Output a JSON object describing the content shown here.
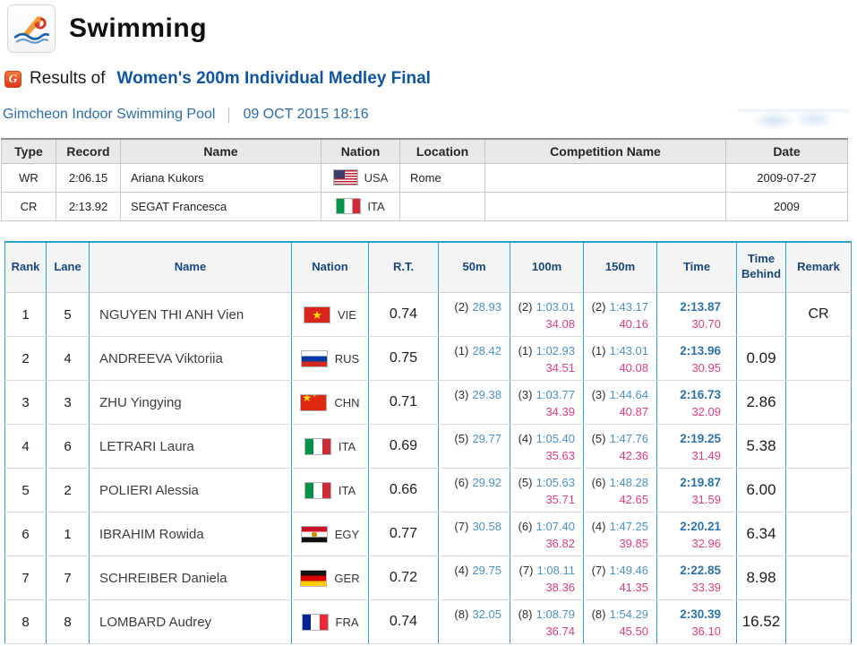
{
  "page": {
    "title": "Swimming",
    "g_icon": "G",
    "results_label": "Results of",
    "event_title": "Women's 200m Individual Medley Final",
    "venue": "Gimcheon Indoor Swimming Pool",
    "datetime": "09 OCT 2015 18:16"
  },
  "icons": {
    "app_icon": "swimmer-pictogram",
    "results_bullet": "g-swirl-badge"
  },
  "colors": {
    "accent_cyan": "#2ba3cf",
    "header_navy": "#17477e",
    "split_blue": "#4a92c8",
    "lap_pink": "#e23b80",
    "final_time_blue": "#2a72b0",
    "event_title_blue": "#0f55a2",
    "venue_blue": "#2b6db2"
  },
  "records_table": {
    "headers": [
      "Type",
      "Record",
      "Name",
      "Nation",
      "Location",
      "Competition Name",
      "Date"
    ],
    "rows": [
      {
        "type": "WR",
        "record": "2:06.15",
        "name": "Ariana Kukors",
        "flag": "usa",
        "nation": "USA",
        "location": "Rome",
        "competition": "",
        "date": "2009-07-27"
      },
      {
        "type": "CR",
        "record": "2:13.92",
        "name": "SEGAT Francesca",
        "flag": "ita",
        "nation": "ITA",
        "location": "",
        "competition": "",
        "date": "2009"
      }
    ]
  },
  "results_table": {
    "headers": [
      "Rank",
      "Lane",
      "Name",
      "Nation",
      "R.T.",
      "50m",
      "100m",
      "150m",
      "Time",
      "Time Behind",
      "Remark"
    ],
    "rows": [
      {
        "rank": "1",
        "lane": "5",
        "name": "NGUYEN THI ANH Vien",
        "flag": "vie",
        "nation": "VIE",
        "rt": "0.74",
        "s50": {
          "pos": "(2)",
          "time": "28.93",
          "lap": ""
        },
        "s100": {
          "pos": "(2)",
          "time": "1:03.01",
          "lap": "34.08"
        },
        "s150": {
          "pos": "(2)",
          "time": "1:43.17",
          "lap": "40.16"
        },
        "final": {
          "time": "2:13.87",
          "lap": "30.70"
        },
        "behind": "",
        "remark": "CR"
      },
      {
        "rank": "2",
        "lane": "4",
        "name": "ANDREEVA Viktoriia",
        "flag": "rus",
        "nation": "RUS",
        "rt": "0.75",
        "s50": {
          "pos": "(1)",
          "time": "28.42",
          "lap": ""
        },
        "s100": {
          "pos": "(1)",
          "time": "1:02.93",
          "lap": "34.51"
        },
        "s150": {
          "pos": "(1)",
          "time": "1:43.01",
          "lap": "40.08"
        },
        "final": {
          "time": "2:13.96",
          "lap": "30.95"
        },
        "behind": "0.09",
        "remark": ""
      },
      {
        "rank": "3",
        "lane": "3",
        "name": "ZHU Yingying",
        "flag": "chn",
        "nation": "CHN",
        "rt": "0.71",
        "s50": {
          "pos": "(3)",
          "time": "29.38",
          "lap": ""
        },
        "s100": {
          "pos": "(3)",
          "time": "1:03.77",
          "lap": "34.39"
        },
        "s150": {
          "pos": "(3)",
          "time": "1:44.64",
          "lap": "40.87"
        },
        "final": {
          "time": "2:16.73",
          "lap": "32.09"
        },
        "behind": "2.86",
        "remark": ""
      },
      {
        "rank": "4",
        "lane": "6",
        "name": "LETRARI Laura",
        "flag": "ita",
        "nation": "ITA",
        "rt": "0.69",
        "s50": {
          "pos": "(5)",
          "time": "29.77",
          "lap": ""
        },
        "s100": {
          "pos": "(4)",
          "time": "1:05.40",
          "lap": "35.63"
        },
        "s150": {
          "pos": "(5)",
          "time": "1:47.76",
          "lap": "42.36"
        },
        "final": {
          "time": "2:19.25",
          "lap": "31.49"
        },
        "behind": "5.38",
        "remark": ""
      },
      {
        "rank": "5",
        "lane": "2",
        "name": "POLIERI Alessia",
        "flag": "ita",
        "nation": "ITA",
        "rt": "0.66",
        "s50": {
          "pos": "(6)",
          "time": "29.92",
          "lap": ""
        },
        "s100": {
          "pos": "(5)",
          "time": "1:05.63",
          "lap": "35.71"
        },
        "s150": {
          "pos": "(6)",
          "time": "1:48.28",
          "lap": "42.65"
        },
        "final": {
          "time": "2:19.87",
          "lap": "31.59"
        },
        "behind": "6.00",
        "remark": ""
      },
      {
        "rank": "6",
        "lane": "1",
        "name": "IBRAHIM Rowida",
        "flag": "egy",
        "nation": "EGY",
        "rt": "0.77",
        "s50": {
          "pos": "(7)",
          "time": "30.58",
          "lap": ""
        },
        "s100": {
          "pos": "(6)",
          "time": "1:07.40",
          "lap": "36.82"
        },
        "s150": {
          "pos": "(4)",
          "time": "1:47.25",
          "lap": "39.85"
        },
        "final": {
          "time": "2:20.21",
          "lap": "32.96"
        },
        "behind": "6.34",
        "remark": ""
      },
      {
        "rank": "7",
        "lane": "7",
        "name": "SCHREIBER Daniela",
        "flag": "ger",
        "nation": "GER",
        "rt": "0.72",
        "s50": {
          "pos": "(4)",
          "time": "29.75",
          "lap": ""
        },
        "s100": {
          "pos": "(7)",
          "time": "1:08.11",
          "lap": "38.36"
        },
        "s150": {
          "pos": "(7)",
          "time": "1:49.46",
          "lap": "41.35"
        },
        "final": {
          "time": "2:22.85",
          "lap": "33.39"
        },
        "behind": "8.98",
        "remark": ""
      },
      {
        "rank": "8",
        "lane": "8",
        "name": "LOMBARD Audrey",
        "flag": "fra",
        "nation": "FRA",
        "rt": "0.74",
        "s50": {
          "pos": "(8)",
          "time": "32.05",
          "lap": ""
        },
        "s100": {
          "pos": "(8)",
          "time": "1:08.79",
          "lap": "36.74"
        },
        "s150": {
          "pos": "(8)",
          "time": "1:54.29",
          "lap": "45.50"
        },
        "final": {
          "time": "2:30.39",
          "lap": "36.10"
        },
        "behind": "16.52",
        "remark": ""
      }
    ]
  }
}
